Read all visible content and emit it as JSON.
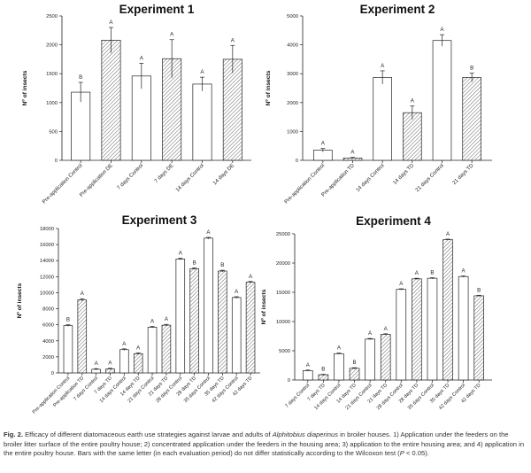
{
  "chart_data": [
    {
      "type": "bar",
      "title": "Experiment 1",
      "ylabel": "Nº of insects",
      "xlabel": "",
      "ylim": [
        0,
        2500
      ],
      "yticks": [
        0,
        500,
        1000,
        1500,
        2000,
        2500
      ],
      "categories": [
        "Pre-application Control",
        "Pre-application DE",
        "7 days Control",
        "7 days DE",
        "14 days Control",
        "14 days DE"
      ],
      "values": [
        1180,
        2080,
        1460,
        1760,
        1320,
        1750
      ],
      "errors": [
        170,
        220,
        220,
        330,
        120,
        240
      ],
      "letters": [
        "B",
        "A",
        "A",
        "A",
        "A",
        "A"
      ],
      "patterns": [
        "open",
        "hatched",
        "open",
        "hatched",
        "open",
        "hatched"
      ]
    },
    {
      "type": "bar",
      "title": "Experiment 2",
      "ylabel": "Nº of insects",
      "xlabel": "",
      "ylim": [
        0,
        5000
      ],
      "yticks": [
        0,
        1000,
        2000,
        3000,
        4000,
        5000
      ],
      "categories": [
        "Pre-application Control",
        "Pre-application TD",
        "14 days Control",
        "14 days TD",
        "21 days Control",
        "21 days TD"
      ],
      "values": [
        350,
        80,
        2870,
        1650,
        4150,
        2870
      ],
      "errors": [
        60,
        20,
        230,
        230,
        200,
        150
      ],
      "letters": [
        "A",
        "A",
        "A",
        "A",
        "A",
        "B"
      ],
      "patterns": [
        "open",
        "hatched",
        "open",
        "hatched",
        "open",
        "hatched"
      ]
    },
    {
      "type": "bar",
      "title": "Experiment 3",
      "ylabel": "Nº of insects",
      "xlabel": "",
      "ylim": [
        0,
        18000
      ],
      "yticks": [
        0,
        2000,
        4000,
        6000,
        8000,
        10000,
        12000,
        14000,
        16000,
        18000
      ],
      "categories": [
        "Pre-application Control",
        "Pre-application TD",
        "7 days Control",
        "7 days TD",
        "14 days Control",
        "14 days TD",
        "21 days Control",
        "21 days TD",
        "28 days Control",
        "28 days TD",
        "35 days Control",
        "35 days TD",
        "42 days Control",
        "42 days TD"
      ],
      "values": [
        5900,
        9100,
        450,
        500,
        2900,
        2400,
        5700,
        5950,
        14200,
        13000,
        16800,
        12700,
        9400,
        11300
      ],
      "errors": [
        100,
        150,
        80,
        80,
        100,
        100,
        100,
        100,
        100,
        100,
        100,
        100,
        100,
        100
      ],
      "letters": [
        "B",
        "A",
        "A",
        "A",
        "A",
        "A",
        "A",
        "A",
        "A",
        "B",
        "A",
        "B",
        "A",
        "A"
      ],
      "patterns": [
        "open",
        "hatched",
        "open",
        "hatched",
        "open",
        "hatched",
        "open",
        "hatched",
        "open",
        "hatched",
        "open",
        "hatched",
        "open",
        "hatched"
      ]
    },
    {
      "type": "bar",
      "title": "Experiment 4",
      "ylabel": "Nº of insects",
      "xlabel": "",
      "ylim": [
        0,
        25000
      ],
      "yticks": [
        0,
        5000,
        10000,
        15000,
        20000,
        25000
      ],
      "categories": [
        "7 days Control",
        "7 days TD",
        "14 days Control",
        "14 days TD",
        "21 days Control",
        "21 days TD",
        "28 days Control",
        "28 days TD",
        "35 days Control",
        "35 days TD",
        "42 days Control",
        "42 days TD"
      ],
      "values": [
        1600,
        900,
        4500,
        2000,
        7000,
        7800,
        15500,
        17300,
        17400,
        24000,
        17700,
        14400
      ],
      "errors": [
        100,
        80,
        100,
        100,
        100,
        100,
        100,
        100,
        100,
        100,
        100,
        100
      ],
      "letters": [
        "A",
        "B",
        "A",
        "B",
        "A",
        "A",
        "A",
        "A",
        "B",
        "A",
        "A",
        "B"
      ],
      "patterns": [
        "open",
        "hatched",
        "open",
        "hatched",
        "open",
        "hatched",
        "open",
        "hatched",
        "open",
        "hatched",
        "open",
        "hatched"
      ]
    }
  ],
  "caption": {
    "label": "Fig. 2.",
    "text_1": "Efficacy of different diatomaceous earth use strategies against larvae and adults of",
    "species": "Alphitobius diaperinus",
    "text_2": "in broiler houses. 1) Application under the feeders on the broiler litter surface of the entire poultry house; 2) concentrated application under the feeders in the housing area; 3) application to the entire housing area; and 4) application in the entire poultry house. Bars with the same letter (in each evaluation period) do not differ statistically according to the Wilcoxon test (",
    "p_symbol": "P",
    "p_value": " < 0.05)."
  }
}
